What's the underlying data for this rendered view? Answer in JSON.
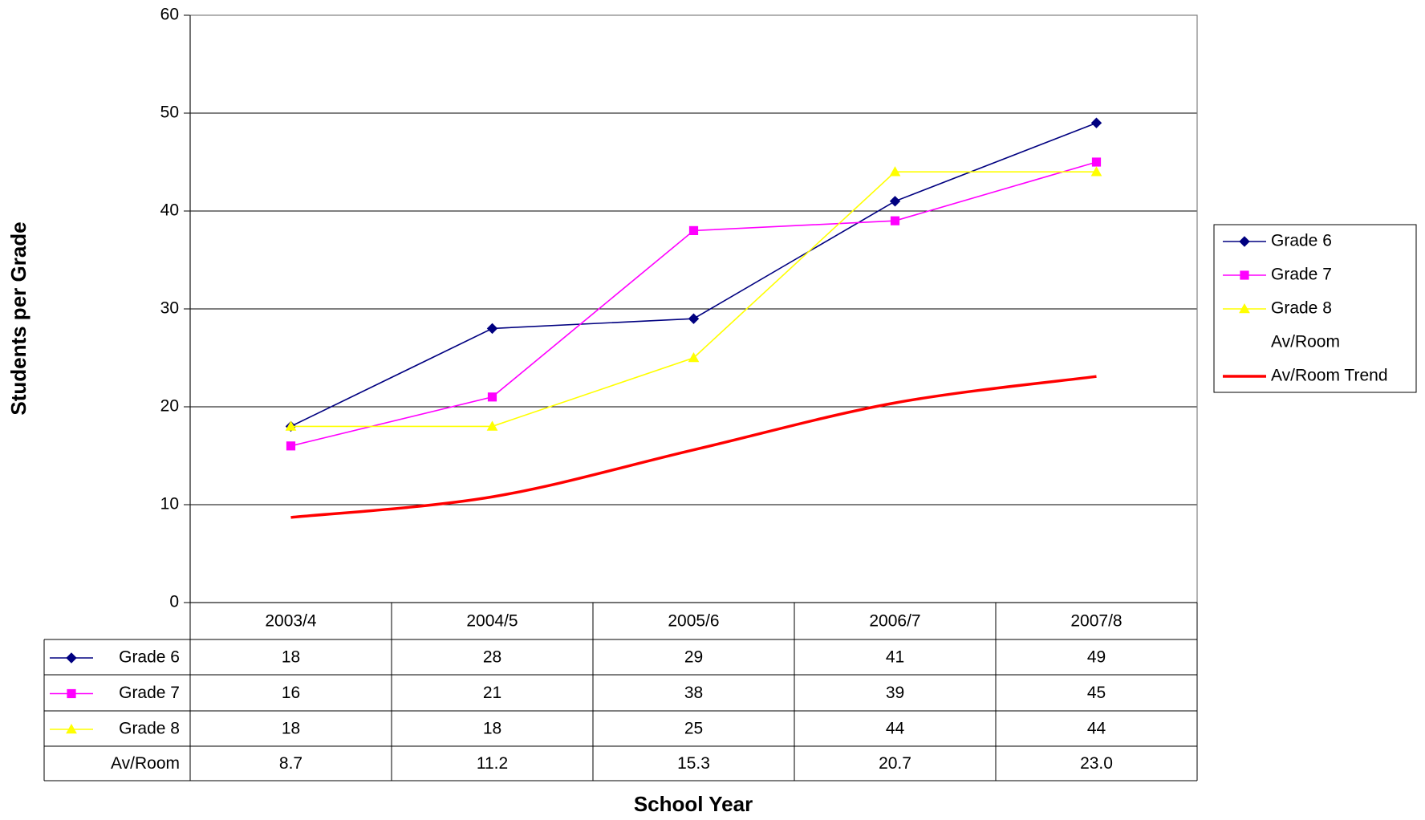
{
  "chart_data": {
    "type": "line",
    "x_label": "School Year",
    "y_label": "Students per Grade",
    "categories": [
      "2003/4",
      "2004/5",
      "2005/6",
      "2006/7",
      "2007/8"
    ],
    "series": [
      {
        "name": "Grade 6",
        "color": "#000080",
        "marker": "diamond",
        "values": [
          18,
          28,
          29,
          41,
          49
        ]
      },
      {
        "name": "Grade 7",
        "color": "#ff00ff",
        "marker": "square",
        "values": [
          16,
          21,
          38,
          39,
          45
        ]
      },
      {
        "name": "Grade 8",
        "color": "#ffff00",
        "marker": "triangle",
        "values": [
          18,
          18,
          25,
          44,
          44
        ]
      },
      {
        "name": "Av/Room",
        "color": null,
        "marker": null,
        "values": [
          8.7,
          11.2,
          15.3,
          20.7,
          23.0
        ],
        "value_labels": [
          "8.7",
          "11.2",
          "15.3",
          "20.7",
          "23.0"
        ]
      }
    ],
    "trendline": {
      "name": "Av/Room Trend",
      "color": "#ff0000",
      "values": [
        8.7,
        10.8,
        15.6,
        20.4,
        23.1
      ]
    },
    "ylim": [
      0,
      60
    ],
    "yticks": [
      0,
      10,
      20,
      30,
      40,
      50,
      60
    ],
    "grid": true,
    "legend": "right",
    "data_table": true
  }
}
